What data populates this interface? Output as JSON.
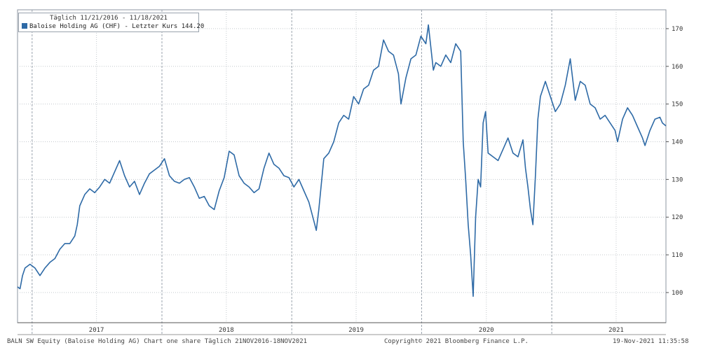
{
  "chart_data": {
    "type": "line",
    "legend": {
      "period": "Täglich 11/21/2016 - 11/18/2021",
      "series_label": "Baloise Holding AG (CHF) - Letzter Kurs 144.20",
      "placement": "top-left"
    },
    "x_start": "2016-11-21",
    "x_end": "2021-11-18",
    "ylim": [
      92,
      175
    ],
    "y_ticks": [
      100,
      110,
      120,
      130,
      140,
      150,
      160,
      170
    ],
    "y_axis_side": "right",
    "x_tick_labels": [
      {
        "label": "2017",
        "date": "2017-07-01"
      },
      {
        "label": "2018",
        "date": "2018-07-01"
      },
      {
        "label": "2019",
        "date": "2019-07-01"
      },
      {
        "label": "2020",
        "date": "2020-07-01"
      },
      {
        "label": "2021",
        "date": "2021-07-01"
      }
    ],
    "year_boundaries": [
      "2017-01-01",
      "2018-01-01",
      "2019-01-01",
      "2020-01-01",
      "2021-01-01"
    ],
    "grid": true,
    "series": [
      {
        "name": "Baloise Holding AG (CHF)",
        "color": "#2e6aa6",
        "points": [
          [
            "2016-11-21",
            101.5
          ],
          [
            "2016-11-28",
            101.0
          ],
          [
            "2016-12-05",
            104.5
          ],
          [
            "2016-12-12",
            106.5
          ],
          [
            "2016-12-26",
            107.5
          ],
          [
            "2017-01-09",
            106.5
          ],
          [
            "2017-01-23",
            104.5
          ],
          [
            "2017-02-06",
            106.5
          ],
          [
            "2017-02-20",
            108.0
          ],
          [
            "2017-03-06",
            109.0
          ],
          [
            "2017-03-20",
            111.5
          ],
          [
            "2017-04-03",
            113.0
          ],
          [
            "2017-04-17",
            113.0
          ],
          [
            "2017-05-01",
            115.0
          ],
          [
            "2017-05-08",
            118.0
          ],
          [
            "2017-05-15",
            123.0
          ],
          [
            "2017-05-29",
            126.0
          ],
          [
            "2017-06-12",
            127.5
          ],
          [
            "2017-06-26",
            126.5
          ],
          [
            "2017-07-10",
            128.0
          ],
          [
            "2017-07-24",
            130.0
          ],
          [
            "2017-08-07",
            129.0
          ],
          [
            "2017-08-21",
            132.0
          ],
          [
            "2017-09-04",
            135.0
          ],
          [
            "2017-09-18",
            131.0
          ],
          [
            "2017-10-02",
            128.0
          ],
          [
            "2017-10-16",
            129.5
          ],
          [
            "2017-10-30",
            126.0
          ],
          [
            "2017-11-13",
            129.0
          ],
          [
            "2017-11-27",
            131.5
          ],
          [
            "2017-12-11",
            132.5
          ],
          [
            "2017-12-25",
            133.5
          ],
          [
            "2018-01-08",
            135.5
          ],
          [
            "2018-01-22",
            131.0
          ],
          [
            "2018-02-05",
            129.5
          ],
          [
            "2018-02-19",
            129.0
          ],
          [
            "2018-03-05",
            130.0
          ],
          [
            "2018-03-19",
            130.5
          ],
          [
            "2018-04-02",
            128.0
          ],
          [
            "2018-04-16",
            125.0
          ],
          [
            "2018-04-30",
            125.5
          ],
          [
            "2018-05-14",
            123.0
          ],
          [
            "2018-05-28",
            122.0
          ],
          [
            "2018-06-11",
            127.0
          ],
          [
            "2018-06-25",
            130.5
          ],
          [
            "2018-07-09",
            137.5
          ],
          [
            "2018-07-23",
            136.5
          ],
          [
            "2018-08-06",
            131.0
          ],
          [
            "2018-08-20",
            129.0
          ],
          [
            "2018-09-03",
            128.0
          ],
          [
            "2018-09-17",
            126.5
          ],
          [
            "2018-10-01",
            127.5
          ],
          [
            "2018-10-15",
            133.0
          ],
          [
            "2018-10-29",
            137.0
          ],
          [
            "2018-11-12",
            134.0
          ],
          [
            "2018-11-26",
            133.0
          ],
          [
            "2018-12-10",
            131.0
          ],
          [
            "2018-12-24",
            130.5
          ],
          [
            "2019-01-07",
            128.0
          ],
          [
            "2019-01-21",
            130.0
          ],
          [
            "2019-02-04",
            127.0
          ],
          [
            "2019-02-18",
            124.0
          ],
          [
            "2019-03-04",
            119.0
          ],
          [
            "2019-03-11",
            116.5
          ],
          [
            "2019-03-18",
            122.0
          ],
          [
            "2019-04-01",
            135.5
          ],
          [
            "2019-04-15",
            137.0
          ],
          [
            "2019-04-29",
            140.0
          ],
          [
            "2019-05-13",
            145.0
          ],
          [
            "2019-05-27",
            147.0
          ],
          [
            "2019-06-10",
            146.0
          ],
          [
            "2019-06-24",
            152.0
          ],
          [
            "2019-07-08",
            150.0
          ],
          [
            "2019-07-22",
            154.0
          ],
          [
            "2019-08-05",
            155.0
          ],
          [
            "2019-08-19",
            159.0
          ],
          [
            "2019-09-02",
            160.0
          ],
          [
            "2019-09-16",
            167.0
          ],
          [
            "2019-09-30",
            164.0
          ],
          [
            "2019-10-14",
            163.0
          ],
          [
            "2019-10-28",
            158.0
          ],
          [
            "2019-11-04",
            150.0
          ],
          [
            "2019-11-18",
            157.0
          ],
          [
            "2019-12-02",
            162.0
          ],
          [
            "2019-12-16",
            163.0
          ],
          [
            "2019-12-30",
            168.0
          ],
          [
            "2020-01-13",
            166.0
          ],
          [
            "2020-01-20",
            171.0
          ],
          [
            "2020-02-03",
            159.0
          ],
          [
            "2020-02-10",
            161.0
          ],
          [
            "2020-02-24",
            160.0
          ],
          [
            "2020-03-09",
            163.0
          ],
          [
            "2020-03-23",
            161.0
          ],
          [
            "2020-04-06",
            166.0
          ],
          [
            "2020-04-20",
            164.0
          ],
          [
            "2020-04-27",
            140.0
          ],
          [
            "2020-05-04",
            130.0
          ],
          [
            "2020-05-11",
            118.0
          ],
          [
            "2020-05-18",
            110.0
          ],
          [
            "2020-05-25",
            99.0
          ],
          [
            "2020-06-01",
            120.0
          ],
          [
            "2020-06-08",
            130.0
          ],
          [
            "2020-06-15",
            128.0
          ],
          [
            "2020-06-22",
            145.0
          ],
          [
            "2020-06-29",
            148.0
          ],
          [
            "2020-07-06",
            137.0
          ],
          [
            "2020-07-20",
            136.0
          ],
          [
            "2020-08-03",
            135.0
          ],
          [
            "2020-08-17",
            138.0
          ],
          [
            "2020-08-31",
            141.0
          ],
          [
            "2020-09-14",
            137.0
          ],
          [
            "2020-09-28",
            136.0
          ],
          [
            "2020-10-12",
            140.5
          ],
          [
            "2020-10-19",
            133.0
          ],
          [
            "2020-10-26",
            128.0
          ],
          [
            "2020-11-02",
            122.0
          ],
          [
            "2020-11-09",
            118.0
          ],
          [
            "2020-11-16",
            131.0
          ],
          [
            "2020-11-23",
            146.0
          ],
          [
            "2020-11-30",
            152.0
          ],
          [
            "2020-12-14",
            156.0
          ],
          [
            "2020-12-28",
            152.0
          ],
          [
            "2021-01-11",
            148.0
          ],
          [
            "2021-01-25",
            150.0
          ],
          [
            "2021-02-08",
            155.0
          ],
          [
            "2021-02-22",
            162.0
          ],
          [
            "2021-03-08",
            151.0
          ],
          [
            "2021-03-22",
            156.0
          ],
          [
            "2021-04-05",
            155.0
          ],
          [
            "2021-04-19",
            150.0
          ],
          [
            "2021-05-03",
            149.0
          ],
          [
            "2021-05-17",
            146.0
          ],
          [
            "2021-05-31",
            147.0
          ],
          [
            "2021-06-14",
            145.0
          ],
          [
            "2021-06-28",
            143.0
          ],
          [
            "2021-07-05",
            140.0
          ],
          [
            "2021-07-19",
            146.0
          ],
          [
            "2021-08-02",
            149.0
          ],
          [
            "2021-08-16",
            147.0
          ],
          [
            "2021-08-30",
            144.0
          ],
          [
            "2021-09-13",
            141.0
          ],
          [
            "2021-09-20",
            139.0
          ],
          [
            "2021-10-04",
            143.0
          ],
          [
            "2021-10-18",
            146.0
          ],
          [
            "2021-11-01",
            146.5
          ],
          [
            "2021-11-08",
            145.0
          ],
          [
            "2021-11-18",
            144.2
          ]
        ]
      }
    ]
  },
  "footer": {
    "left": "BALN SW Equity (Baloise Holding AG) Chart one share  Täglich 21NOV2016-18NOV2021",
    "center": "Copyright© 2021 Bloomberg Finance L.P.",
    "right": "19-Nov-2021 11:35:58"
  }
}
